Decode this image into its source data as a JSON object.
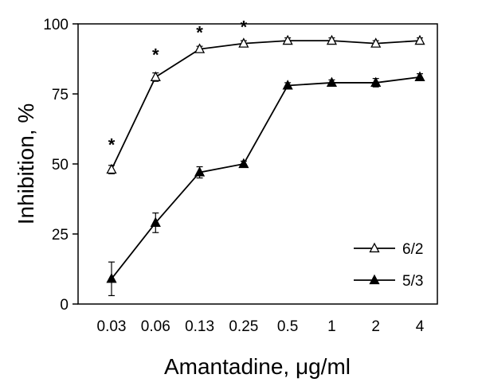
{
  "chart_data": {
    "type": "line",
    "xlabel": "Amantadine, μg/ml",
    "ylabel": "Inhibition, %",
    "categories": [
      "0.03",
      "0.06",
      "0.13",
      "0.25",
      "0.5",
      "1",
      "2",
      "4"
    ],
    "ylim": [
      0,
      100
    ],
    "yticks": [
      "0",
      "25",
      "50",
      "75",
      "100"
    ],
    "grid": false,
    "legend_position": "bottom-right",
    "series": [
      {
        "name": "6/2",
        "marker": "open-triangle",
        "values": [
          48,
          81,
          91,
          93,
          94,
          94,
          93,
          94
        ],
        "errors": [
          1.5,
          1.5,
          1,
          1,
          1,
          1,
          1,
          1
        ]
      },
      {
        "name": "5/3",
        "marker": "filled-triangle",
        "values": [
          9,
          29,
          47,
          50,
          78,
          79,
          79,
          81
        ],
        "errors": [
          6,
          3.5,
          2,
          1,
          1,
          1,
          1.5,
          1.2
        ]
      }
    ],
    "annotations": [
      {
        "text": "*",
        "category": "0.03",
        "y": 57
      },
      {
        "text": "*",
        "category": "0.06",
        "y": 89
      },
      {
        "text": "*",
        "category": "0.13",
        "y": 97
      },
      {
        "text": "*",
        "category": "0.25",
        "y": 99
      }
    ],
    "colors": {
      "line": "#000000",
      "open_marker_fill": "#ffffff",
      "filled_marker_fill": "#000000"
    }
  }
}
